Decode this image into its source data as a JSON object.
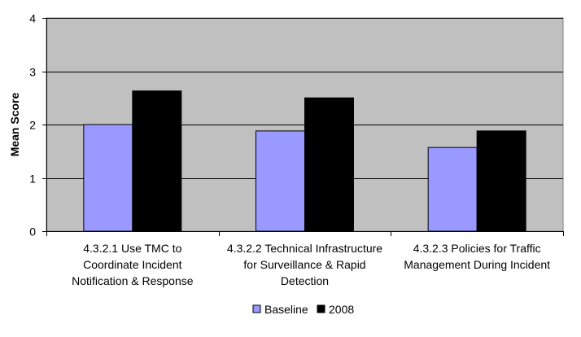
{
  "chart_data": {
    "type": "bar",
    "title": "",
    "xlabel": "",
    "ylabel": "Mean Score",
    "ylim": [
      0,
      4
    ],
    "yticks": [
      0,
      1,
      2,
      3,
      4
    ],
    "grid": true,
    "legend_position": "bottom",
    "categories": [
      [
        "4.3.2.1 Use TMC to",
        "Coordinate Incident",
        "Notification & Response"
      ],
      [
        "4.3.2.2 Technical Infrastructure",
        "for Surveillance & Rapid",
        "Detection"
      ],
      [
        "4.3.2.3 Policies for Traffic",
        "Management During Incident"
      ]
    ],
    "series": [
      {
        "name": "Baseline",
        "color": "#9999ff",
        "values": [
          2.0,
          1.88,
          1.57
        ]
      },
      {
        "name": "2008",
        "color": "#000000",
        "values": [
          2.63,
          2.5,
          1.88
        ]
      }
    ],
    "plot_background": "#c0c0c0"
  }
}
